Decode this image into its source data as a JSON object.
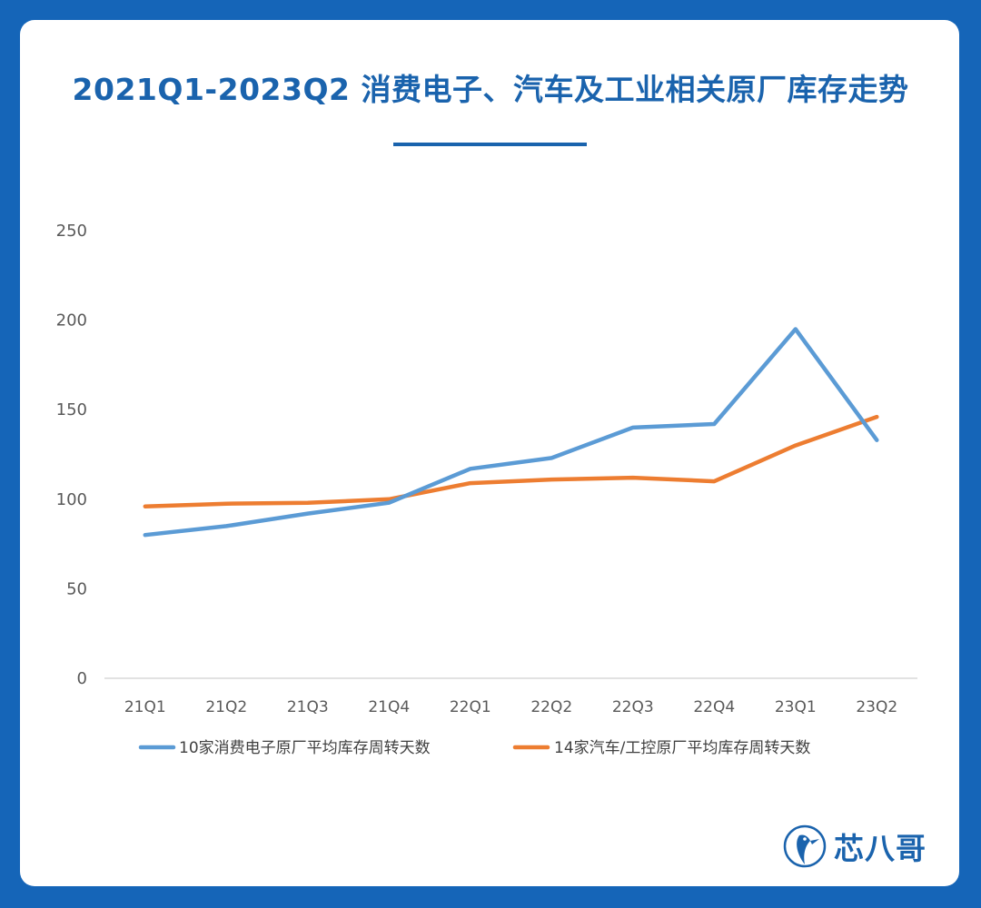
{
  "title": "2021Q1-2023Q2 消费电子、汽车及工业相关原厂库存走势",
  "brand": {
    "name": "芯八哥",
    "icon": "bird-logo-icon"
  },
  "colors": {
    "background": "#1565b8",
    "title": "#1a63ad",
    "series1": "#5b9bd5",
    "series2": "#ed7d31"
  },
  "chart_data": {
    "type": "line",
    "categories": [
      "21Q1",
      "21Q2",
      "21Q3",
      "21Q4",
      "22Q1",
      "22Q2",
      "22Q3",
      "22Q4",
      "23Q1",
      "23Q2"
    ],
    "series": [
      {
        "name": "10家消费电子原厂平均库存周转天数",
        "values": [
          80,
          85,
          92,
          98,
          117,
          123,
          140,
          142,
          195,
          133
        ]
      },
      {
        "name": "14家汽车/工控原厂平均库存周转天数",
        "values": [
          96,
          97.5,
          98,
          100,
          109,
          111,
          112,
          110,
          130,
          146
        ]
      }
    ],
    "yticks": [
      0,
      50,
      100,
      150,
      200,
      250
    ],
    "ylim": [
      0,
      250
    ],
    "grid": false,
    "legend": "bottom"
  }
}
